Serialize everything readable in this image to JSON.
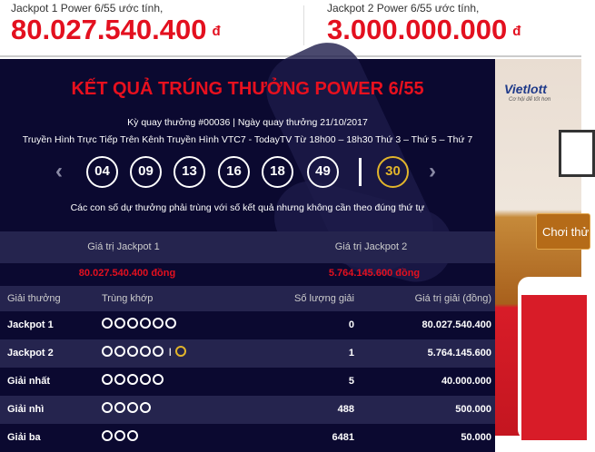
{
  "header": {
    "jackpot1_label": "Jackpot 1 Power 6/55 ước tính,",
    "jackpot1_amount": "80.027.540.400",
    "jackpot2_label": "Jackpot 2 Power 6/55 ước tính,",
    "jackpot2_amount": "3.000.000.000",
    "currency": "đ"
  },
  "result": {
    "title": "KẾT QUẢ TRÚNG THƯỞNG POWER 6/55",
    "draw_info": "Kỳ quay thưởng #00036 | Ngày quay thưởng 21/10/2017",
    "broadcast": "Truyền Hình Trực Tiếp Trên Kênh Truyền Hình VTC7 - TodayTV Từ 18h00 – 18h30 Thứ 3 – Thứ 5 – Thứ 7",
    "numbers": [
      "04",
      "09",
      "13",
      "16",
      "18",
      "49"
    ],
    "power_number": "30",
    "note": "Các con số dự thưởng phải trùng với số kết quả nhưng không cần theo đúng thứ tự",
    "prev_icon": "chevron-left",
    "next_icon": "chevron-right"
  },
  "jackpot_values": {
    "jp1_label": "Giá trị Jackpot 1",
    "jp2_label": "Giá trị Jackpot 2",
    "jp1_value": "80.027.540.400 đồng",
    "jp2_value": "5.764.145.600 đồng"
  },
  "table": {
    "headers": [
      "Giải thưởng",
      "Trùng khớp",
      "Số lượng giải",
      "Giá trị giải (đồng)"
    ],
    "rows": [
      {
        "prize": "Jackpot 1",
        "matches": 6,
        "power": false,
        "count": "0",
        "value": "80.027.540.400"
      },
      {
        "prize": "Jackpot 2",
        "matches": 5,
        "power": true,
        "count": "1",
        "value": "5.764.145.600"
      },
      {
        "prize": "Giải nhất",
        "matches": 5,
        "power": false,
        "count": "5",
        "value": "40.000.000"
      },
      {
        "prize": "Giải nhì",
        "matches": 4,
        "power": false,
        "count": "488",
        "value": "500.000"
      },
      {
        "prize": "Giải ba",
        "matches": 3,
        "power": false,
        "count": "6481",
        "value": "50.000"
      }
    ]
  },
  "ad": {
    "brand": "Vietlott",
    "tagline": "Cơ hội để tốt hơn",
    "button": "Chơi thử"
  },
  "colors": {
    "red": "#e3101f",
    "gold": "#e2b52b",
    "panel": "#0b0930"
  }
}
